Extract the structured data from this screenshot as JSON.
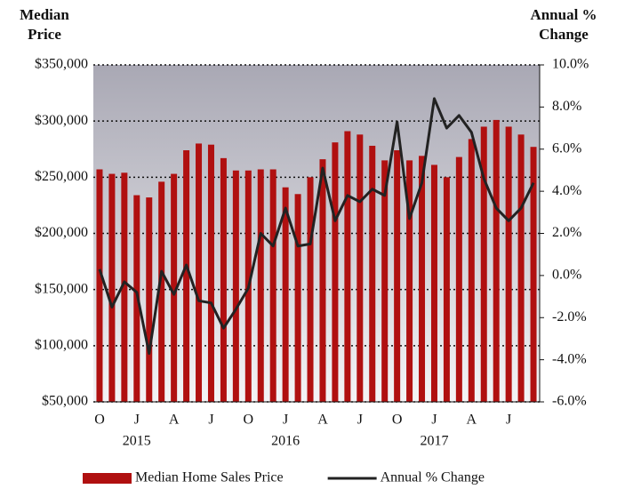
{
  "chart_data": {
    "type": "bar_line",
    "y_title": "Median Price",
    "y2_title": "Annual % Change",
    "categories": [
      "O",
      null,
      null,
      "J",
      null,
      null,
      "A",
      null,
      null,
      "J",
      null,
      null,
      "O",
      null,
      null,
      "J",
      null,
      null,
      "A",
      null,
      null,
      "J",
      null,
      null,
      "O",
      null,
      null,
      "J",
      null,
      null,
      "A",
      null,
      null,
      "J",
      null,
      null
    ],
    "years": [
      "2015",
      "2016",
      "2017"
    ],
    "series": [
      {
        "name": "Median Home Sales Price",
        "color": "#b01010",
        "type": "bar",
        "values": [
          257000,
          253000,
          254000,
          234000,
          232000,
          246000,
          253000,
          274000,
          280000,
          279000,
          267000,
          256000,
          256000,
          257000,
          257000,
          241000,
          235000,
          250000,
          266000,
          281000,
          291000,
          288000,
          278000,
          265000,
          274000,
          265000,
          269000,
          261000,
          250000,
          268000,
          284000,
          295000,
          301000,
          295000,
          288000,
          277000
        ]
      },
      {
        "name": "Annual % Change",
        "color": "#222222",
        "type": "line",
        "axis": "y2",
        "values": [
          0.3,
          -1.5,
          -0.3,
          -0.8,
          -3.7,
          0.2,
          -0.9,
          0.5,
          -1.2,
          -1.3,
          -2.5,
          -1.6,
          -0.6,
          2.0,
          1.4,
          3.2,
          1.4,
          1.5,
          5.1,
          2.6,
          3.8,
          3.5,
          4.1,
          3.8,
          7.3,
          2.7,
          4.4,
          8.4,
          7.0,
          7.6,
          6.8,
          4.6,
          3.2,
          2.6,
          3.2,
          4.4
        ]
      }
    ],
    "ylim": [
      50000,
      350000
    ],
    "yticks": [
      {
        "value": 50000,
        "label": "$50,000"
      },
      {
        "value": 100000,
        "label": "$100,000"
      },
      {
        "value": 150000,
        "label": "$150,000"
      },
      {
        "value": 200000,
        "label": "$200,000"
      },
      {
        "value": 250000,
        "label": "$250,000"
      },
      {
        "value": 300000,
        "label": "$300,000"
      },
      {
        "value": 350000,
        "label": "$350,000"
      }
    ],
    "y2lim": [
      -6,
      10
    ],
    "y2ticks": [
      {
        "value": -6,
        "label": "-6.0%"
      },
      {
        "value": -4,
        "label": "-4.0%"
      },
      {
        "value": -2,
        "label": "-2.0%"
      },
      {
        "value": 0,
        "label": "0.0%"
      },
      {
        "value": 2,
        "label": "2.0%"
      },
      {
        "value": 4,
        "label": "4.0%"
      },
      {
        "value": 6,
        "label": "6.0%"
      },
      {
        "value": 8,
        "label": "8.0%"
      },
      {
        "value": 10,
        "label": "10.0%"
      }
    ],
    "grid": true,
    "legend": "bottom"
  }
}
